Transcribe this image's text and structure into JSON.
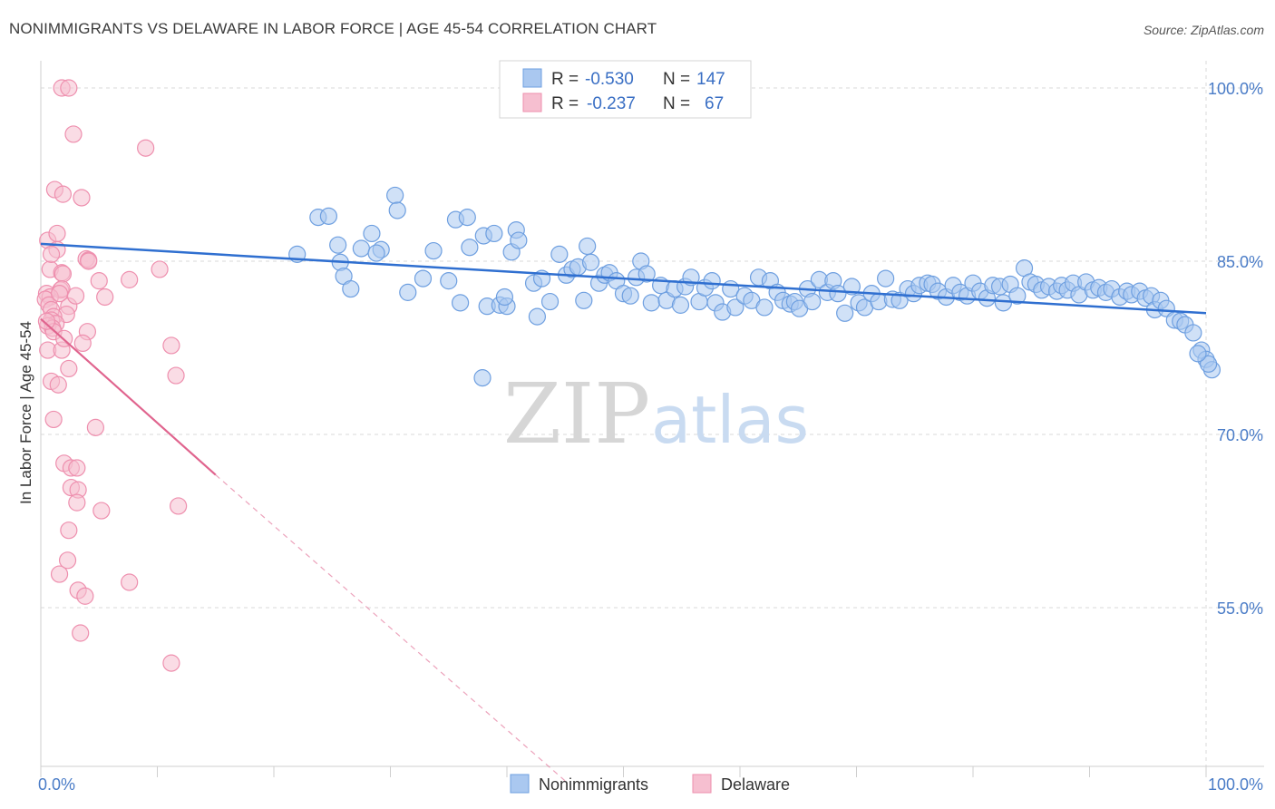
{
  "title": "NONIMMIGRANTS VS DELAWARE IN LABOR FORCE | AGE 45-54 CORRELATION CHART",
  "source": "Source: ZipAtlas.com",
  "watermark": {
    "zip": "ZIP",
    "atlas": "atlas"
  },
  "colors": {
    "blue_fill": "#aac8f0",
    "blue_stroke": "#6e9fe0",
    "blue_line": "#2f6fd0",
    "pink_fill": "#f6bfd0",
    "pink_stroke": "#ee8fae",
    "pink_line": "#e0648e",
    "grid": "#d9d9d9",
    "tick_label": "#4a7cc7"
  },
  "legend": {
    "rows": [
      {
        "r_label": "R =",
        "r_value": "-0.530",
        "n_label": "N =",
        "n_value": "147"
      },
      {
        "r_label": "R =",
        "r_value": "-0.237",
        "n_label": "N =",
        "n_value": "67"
      }
    ]
  },
  "chart_data": {
    "type": "scatter",
    "title": "NONIMMIGRANTS VS DELAWARE IN LABOR FORCE | AGE 45-54 CORRELATION CHART",
    "xlabel": "",
    "ylabel": "In Labor Force | Age 45-54",
    "xlim": [
      0,
      100
    ],
    "ylim": [
      40,
      102
    ],
    "x_tick_labels": [
      "0.0%",
      "100.0%"
    ],
    "y_ticks": [
      55,
      70,
      85,
      100
    ],
    "y_tick_labels": [
      "55.0%",
      "70.0%",
      "85.0%",
      "100.0%"
    ],
    "grid": true,
    "legend_position": "top-center",
    "series": [
      {
        "name": "Nonimmigrants",
        "R": -0.53,
        "N": 147,
        "trend": {
          "x": [
            0,
            100
          ],
          "y": [
            86.5,
            80.5
          ]
        },
        "points": [
          [
            22.0,
            85.6
          ],
          [
            23.8,
            88.8
          ],
          [
            24.7,
            88.9
          ],
          [
            25.5,
            86.4
          ],
          [
            25.7,
            84.9
          ],
          [
            26.0,
            83.7
          ],
          [
            26.6,
            82.6
          ],
          [
            27.5,
            86.1
          ],
          [
            28.4,
            87.4
          ],
          [
            29.2,
            86.0
          ],
          [
            28.8,
            85.7
          ],
          [
            30.4,
            90.7
          ],
          [
            30.6,
            89.4
          ],
          [
            31.5,
            82.3
          ],
          [
            32.8,
            83.5
          ],
          [
            33.7,
            85.9
          ],
          [
            35.0,
            83.3
          ],
          [
            35.6,
            88.6
          ],
          [
            36.6,
            88.8
          ],
          [
            36.0,
            81.4
          ],
          [
            36.8,
            86.2
          ],
          [
            38.0,
            87.2
          ],
          [
            38.9,
            87.4
          ],
          [
            38.3,
            81.1
          ],
          [
            39.4,
            81.2
          ],
          [
            40.0,
            81.1
          ],
          [
            39.8,
            81.9
          ],
          [
            40.4,
            85.8
          ],
          [
            40.8,
            87.7
          ],
          [
            41.0,
            86.8
          ],
          [
            42.3,
            83.1
          ],
          [
            42.6,
            80.2
          ],
          [
            43.0,
            83.5
          ],
          [
            43.7,
            81.5
          ],
          [
            44.5,
            85.6
          ],
          [
            45.1,
            83.8
          ],
          [
            45.6,
            84.3
          ],
          [
            46.1,
            84.5
          ],
          [
            46.6,
            81.6
          ],
          [
            46.9,
            86.3
          ],
          [
            47.2,
            84.9
          ],
          [
            47.9,
            83.1
          ],
          [
            48.4,
            83.8
          ],
          [
            48.8,
            84.0
          ],
          [
            49.4,
            83.3
          ],
          [
            50.0,
            82.2
          ],
          [
            50.6,
            82.0
          ],
          [
            51.1,
            83.6
          ],
          [
            51.5,
            85.0
          ],
          [
            52.0,
            83.9
          ],
          [
            52.4,
            81.4
          ],
          [
            53.2,
            82.9
          ],
          [
            53.7,
            81.6
          ],
          [
            54.4,
            82.6
          ],
          [
            54.9,
            81.2
          ],
          [
            55.3,
            82.8
          ],
          [
            55.8,
            83.6
          ],
          [
            56.5,
            81.5
          ],
          [
            57.0,
            82.7
          ],
          [
            57.6,
            83.3
          ],
          [
            57.9,
            81.4
          ],
          [
            58.5,
            80.6
          ],
          [
            59.2,
            82.6
          ],
          [
            59.6,
            81.0
          ],
          [
            60.4,
            82.0
          ],
          [
            61.0,
            81.6
          ],
          [
            61.6,
            83.6
          ],
          [
            62.1,
            81.0
          ],
          [
            62.6,
            83.3
          ],
          [
            63.2,
            82.3
          ],
          [
            63.7,
            81.6
          ],
          [
            64.3,
            81.3
          ],
          [
            64.7,
            81.5
          ],
          [
            65.1,
            80.9
          ],
          [
            65.8,
            82.6
          ],
          [
            66.2,
            81.5
          ],
          [
            66.8,
            83.4
          ],
          [
            67.5,
            82.3
          ],
          [
            68.0,
            83.3
          ],
          [
            68.4,
            82.2
          ],
          [
            69.0,
            80.5
          ],
          [
            69.6,
            82.8
          ],
          [
            70.2,
            81.4
          ],
          [
            70.7,
            81.0
          ],
          [
            71.3,
            82.2
          ],
          [
            71.9,
            81.5
          ],
          [
            72.5,
            83.5
          ],
          [
            73.1,
            81.7
          ],
          [
            73.7,
            81.6
          ],
          [
            74.4,
            82.6
          ],
          [
            74.9,
            82.2
          ],
          [
            75.4,
            82.9
          ],
          [
            76.1,
            83.1
          ],
          [
            76.5,
            83.0
          ],
          [
            77.0,
            82.4
          ],
          [
            77.7,
            81.9
          ],
          [
            78.3,
            82.9
          ],
          [
            78.9,
            82.3
          ],
          [
            79.5,
            82.0
          ],
          [
            80.0,
            83.1
          ],
          [
            80.6,
            82.4
          ],
          [
            81.2,
            81.8
          ],
          [
            81.7,
            82.9
          ],
          [
            82.3,
            82.8
          ],
          [
            82.6,
            81.4
          ],
          [
            83.2,
            83.0
          ],
          [
            83.8,
            82.0
          ],
          [
            84.4,
            84.4
          ],
          [
            84.9,
            83.2
          ],
          [
            85.4,
            83.0
          ],
          [
            85.9,
            82.5
          ],
          [
            86.5,
            82.8
          ],
          [
            87.2,
            82.4
          ],
          [
            87.6,
            82.9
          ],
          [
            88.1,
            82.5
          ],
          [
            88.6,
            83.1
          ],
          [
            89.1,
            82.1
          ],
          [
            89.7,
            83.2
          ],
          [
            90.3,
            82.5
          ],
          [
            90.8,
            82.7
          ],
          [
            91.4,
            82.3
          ],
          [
            91.9,
            82.6
          ],
          [
            92.6,
            81.9
          ],
          [
            93.2,
            82.4
          ],
          [
            93.6,
            82.1
          ],
          [
            94.3,
            82.4
          ],
          [
            94.8,
            81.8
          ],
          [
            95.3,
            82.0
          ],
          [
            95.6,
            80.8
          ],
          [
            96.1,
            81.6
          ],
          [
            96.6,
            80.9
          ],
          [
            97.3,
            79.9
          ],
          [
            97.8,
            79.8
          ],
          [
            98.2,
            79.5
          ],
          [
            98.9,
            78.8
          ],
          [
            99.6,
            77.3
          ],
          [
            100.0,
            76.5
          ],
          [
            100.5,
            75.6
          ],
          [
            37.9,
            74.9
          ],
          [
            100.2,
            76.1
          ],
          [
            99.3,
            77.0
          ]
        ]
      },
      {
        "name": "Delaware",
        "R": -0.237,
        "N": 67,
        "trend": {
          "x": [
            0,
            15
          ],
          "y": [
            80.0,
            66.5
          ]
        },
        "trend_extension": {
          "x": [
            15,
            45
          ],
          "y": [
            66.5,
            40.0
          ]
        },
        "points": [
          [
            1.8,
            100.0
          ],
          [
            2.4,
            100.0
          ],
          [
            2.8,
            96.0
          ],
          [
            9.0,
            94.8
          ],
          [
            1.2,
            91.2
          ],
          [
            1.9,
            90.8
          ],
          [
            3.5,
            90.5
          ],
          [
            0.6,
            86.8
          ],
          [
            1.4,
            87.4
          ],
          [
            1.4,
            86.0
          ],
          [
            3.9,
            85.2
          ],
          [
            4.1,
            85.1
          ],
          [
            0.8,
            84.3
          ],
          [
            1.8,
            84.0
          ],
          [
            1.9,
            83.9
          ],
          [
            10.2,
            84.3
          ],
          [
            5.0,
            83.3
          ],
          [
            7.6,
            83.4
          ],
          [
            1.7,
            82.5
          ],
          [
            1.8,
            82.6
          ],
          [
            0.5,
            82.2
          ],
          [
            0.8,
            81.9
          ],
          [
            5.5,
            81.9
          ],
          [
            0.4,
            81.7
          ],
          [
            0.7,
            81.2
          ],
          [
            2.4,
            81.1
          ],
          [
            0.9,
            80.8
          ],
          [
            2.2,
            80.4
          ],
          [
            1.1,
            80.2
          ],
          [
            0.9,
            79.9
          ],
          [
            1.3,
            79.6
          ],
          [
            0.6,
            79.4
          ],
          [
            1.0,
            79.2
          ],
          [
            1.1,
            78.9
          ],
          [
            4.0,
            78.9
          ],
          [
            3.6,
            77.9
          ],
          [
            11.2,
            77.7
          ],
          [
            0.6,
            77.3
          ],
          [
            1.8,
            77.3
          ],
          [
            2.4,
            75.7
          ],
          [
            11.6,
            75.1
          ],
          [
            0.9,
            74.6
          ],
          [
            1.5,
            74.3
          ],
          [
            1.1,
            71.3
          ],
          [
            4.7,
            70.6
          ],
          [
            2.0,
            67.5
          ],
          [
            2.6,
            67.1
          ],
          [
            3.1,
            67.1
          ],
          [
            2.6,
            65.4
          ],
          [
            3.2,
            65.2
          ],
          [
            3.1,
            64.1
          ],
          [
            5.2,
            63.4
          ],
          [
            11.8,
            63.8
          ],
          [
            2.4,
            61.7
          ],
          [
            2.3,
            59.1
          ],
          [
            1.6,
            57.9
          ],
          [
            7.6,
            57.2
          ],
          [
            3.2,
            56.5
          ],
          [
            3.8,
            56.0
          ],
          [
            3.4,
            52.8
          ],
          [
            11.2,
            50.2
          ],
          [
            4.1,
            85.0
          ],
          [
            0.9,
            85.6
          ],
          [
            1.6,
            82.2
          ],
          [
            0.5,
            79.8
          ],
          [
            2.0,
            78.3
          ],
          [
            3.0,
            82.0
          ]
        ]
      }
    ]
  },
  "bottom_legend": {
    "items": [
      "Nonimmigrants",
      "Delaware"
    ]
  }
}
